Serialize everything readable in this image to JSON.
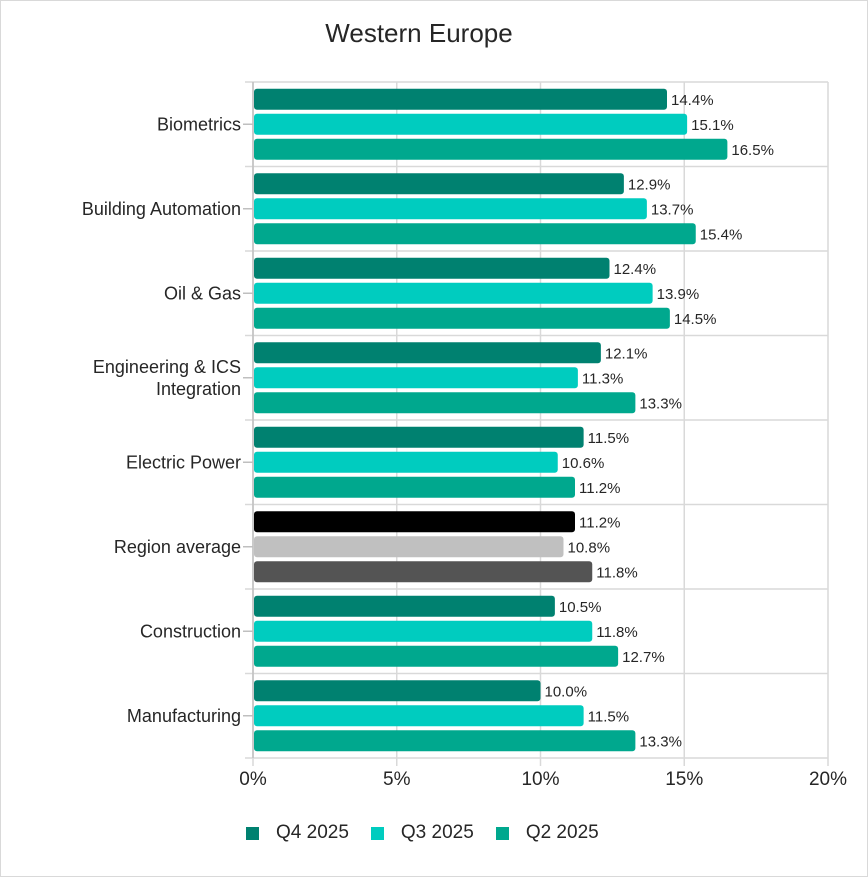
{
  "chart_data": {
    "type": "bar",
    "orientation": "horizontal",
    "title": "Western Europe",
    "xlabel": "",
    "ylabel": "",
    "xlim": [
      0,
      20
    ],
    "x_ticks": [
      "0%",
      "5%",
      "10%",
      "15%",
      "20%"
    ],
    "x_tick_values": [
      0,
      5,
      10,
      15,
      20
    ],
    "grid": true,
    "legend_position": "bottom",
    "categories": [
      "Biometrics",
      "Building Automation",
      "Oil & Gas",
      "Engineering & ICS Integration",
      "Electric Power",
      "Region average",
      "Construction",
      "Manufacturing"
    ],
    "category_display": [
      [
        "Biometrics"
      ],
      [
        "Building Automation"
      ],
      [
        "Oil & Gas"
      ],
      [
        "Engineering & ICS",
        "Integration"
      ],
      [
        "Electric Power"
      ],
      [
        "Region average"
      ],
      [
        "Construction"
      ],
      [
        "Manufacturing"
      ]
    ],
    "series": [
      {
        "name": "Q4 2025",
        "color": "#008170",
        "values": [
          14.4,
          12.9,
          12.4,
          12.1,
          11.5,
          11.2,
          10.5,
          10.0
        ]
      },
      {
        "name": "Q3 2025",
        "color": "#00ccbf",
        "values": [
          15.1,
          13.7,
          13.9,
          11.3,
          10.6,
          10.8,
          11.8,
          11.5
        ]
      },
      {
        "name": "Q2 2025",
        "color": "#00a88e",
        "values": [
          16.5,
          15.4,
          14.5,
          13.3,
          11.2,
          11.8,
          12.7,
          13.3
        ]
      }
    ],
    "value_labels": [
      [
        "14.4%",
        "15.1%",
        "16.5%"
      ],
      [
        "12.9%",
        "13.7%",
        "15.4%"
      ],
      [
        "12.4%",
        "13.9%",
        "14.5%"
      ],
      [
        "12.1%",
        "11.3%",
        "13.3%"
      ],
      [
        "11.5%",
        "10.6%",
        "11.2%"
      ],
      [
        "11.2%",
        "10.8%",
        "11.8%"
      ],
      [
        "10.5%",
        "11.8%",
        "12.7%"
      ],
      [
        "10.0%",
        "11.5%",
        "13.3%"
      ]
    ],
    "highlight_category": "Region average",
    "highlight_colors": [
      "#000000",
      "#c0c0c0",
      "#545454"
    ]
  }
}
